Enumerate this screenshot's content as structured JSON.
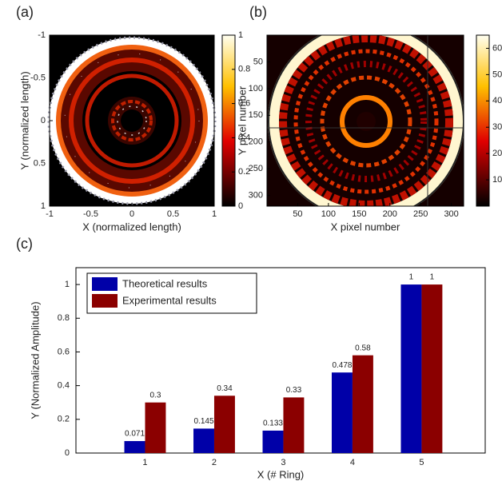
{
  "chart_data": [
    {
      "type": "heatmap",
      "panel_label": "(a)",
      "xlabel": "X (normalized length)",
      "ylabel": "Y (normalized length)",
      "xlim": [
        -1,
        1
      ],
      "xticks": [
        -1,
        -0.5,
        0,
        0.5,
        1
      ],
      "ylim": [
        -1,
        1
      ],
      "yticks": [
        -1,
        -0.5,
        0,
        0.5,
        1
      ],
      "y_reversed": true,
      "clim": [
        0,
        1
      ],
      "cticks": [
        0,
        0.2,
        0.4,
        0.6,
        0.8,
        1
      ]
    },
    {
      "type": "heatmap",
      "panel_label": "(b)",
      "xlabel": "X pixel number",
      "ylabel": "Y pixel number",
      "xlim": [
        0,
        320
      ],
      "xticks": [
        50,
        100,
        150,
        200,
        250,
        300
      ],
      "ylim": [
        0,
        320
      ],
      "yticks": [
        50,
        100,
        150,
        200,
        250,
        300
      ],
      "y_reversed": true,
      "clim": [
        0,
        65
      ],
      "cticks": [
        10,
        20,
        30,
        40,
        50,
        60
      ]
    },
    {
      "type": "bar",
      "panel_label": "(c)",
      "xlabel": "X (# Ring)",
      "ylabel": "Y (Normalized Amplitude)",
      "categories": [
        "1",
        "2",
        "3",
        "4",
        "5"
      ],
      "series": [
        {
          "name": "Theoretical results",
          "color": "#0000a8",
          "values": [
            0.071,
            0.145,
            0.133,
            0.478,
            1
          ]
        },
        {
          "name": "Experimental results",
          "color": "#8b0000",
          "values": [
            0.3,
            0.34,
            0.33,
            0.58,
            1
          ]
        }
      ],
      "ylim": [
        0,
        1.1
      ],
      "yticks": [
        0,
        0.2,
        0.4,
        0.6,
        0.8,
        1
      ],
      "legend": "upper left"
    }
  ]
}
